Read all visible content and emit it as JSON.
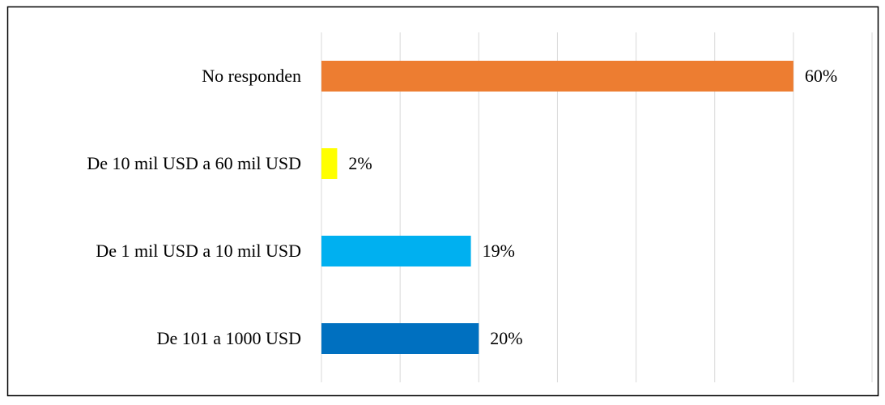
{
  "chart_data": {
    "type": "bar",
    "orientation": "horizontal",
    "categories": [
      "No responden",
      "De 10 mil USD a 60 mil USD",
      "De 1 mil USD a 10 mil USD",
      "De 101 a 1000 USD"
    ],
    "values": [
      60,
      2,
      19,
      20
    ],
    "value_labels": [
      "60%",
      "2%",
      "19%",
      "20%"
    ],
    "colors": [
      "#ED7D31",
      "#FFFF00",
      "#00B0F0",
      "#0070C0"
    ],
    "xlim": [
      0,
      70
    ],
    "xticks": [
      0,
      10,
      20,
      30,
      40,
      50,
      60,
      70
    ],
    "grid": true
  }
}
